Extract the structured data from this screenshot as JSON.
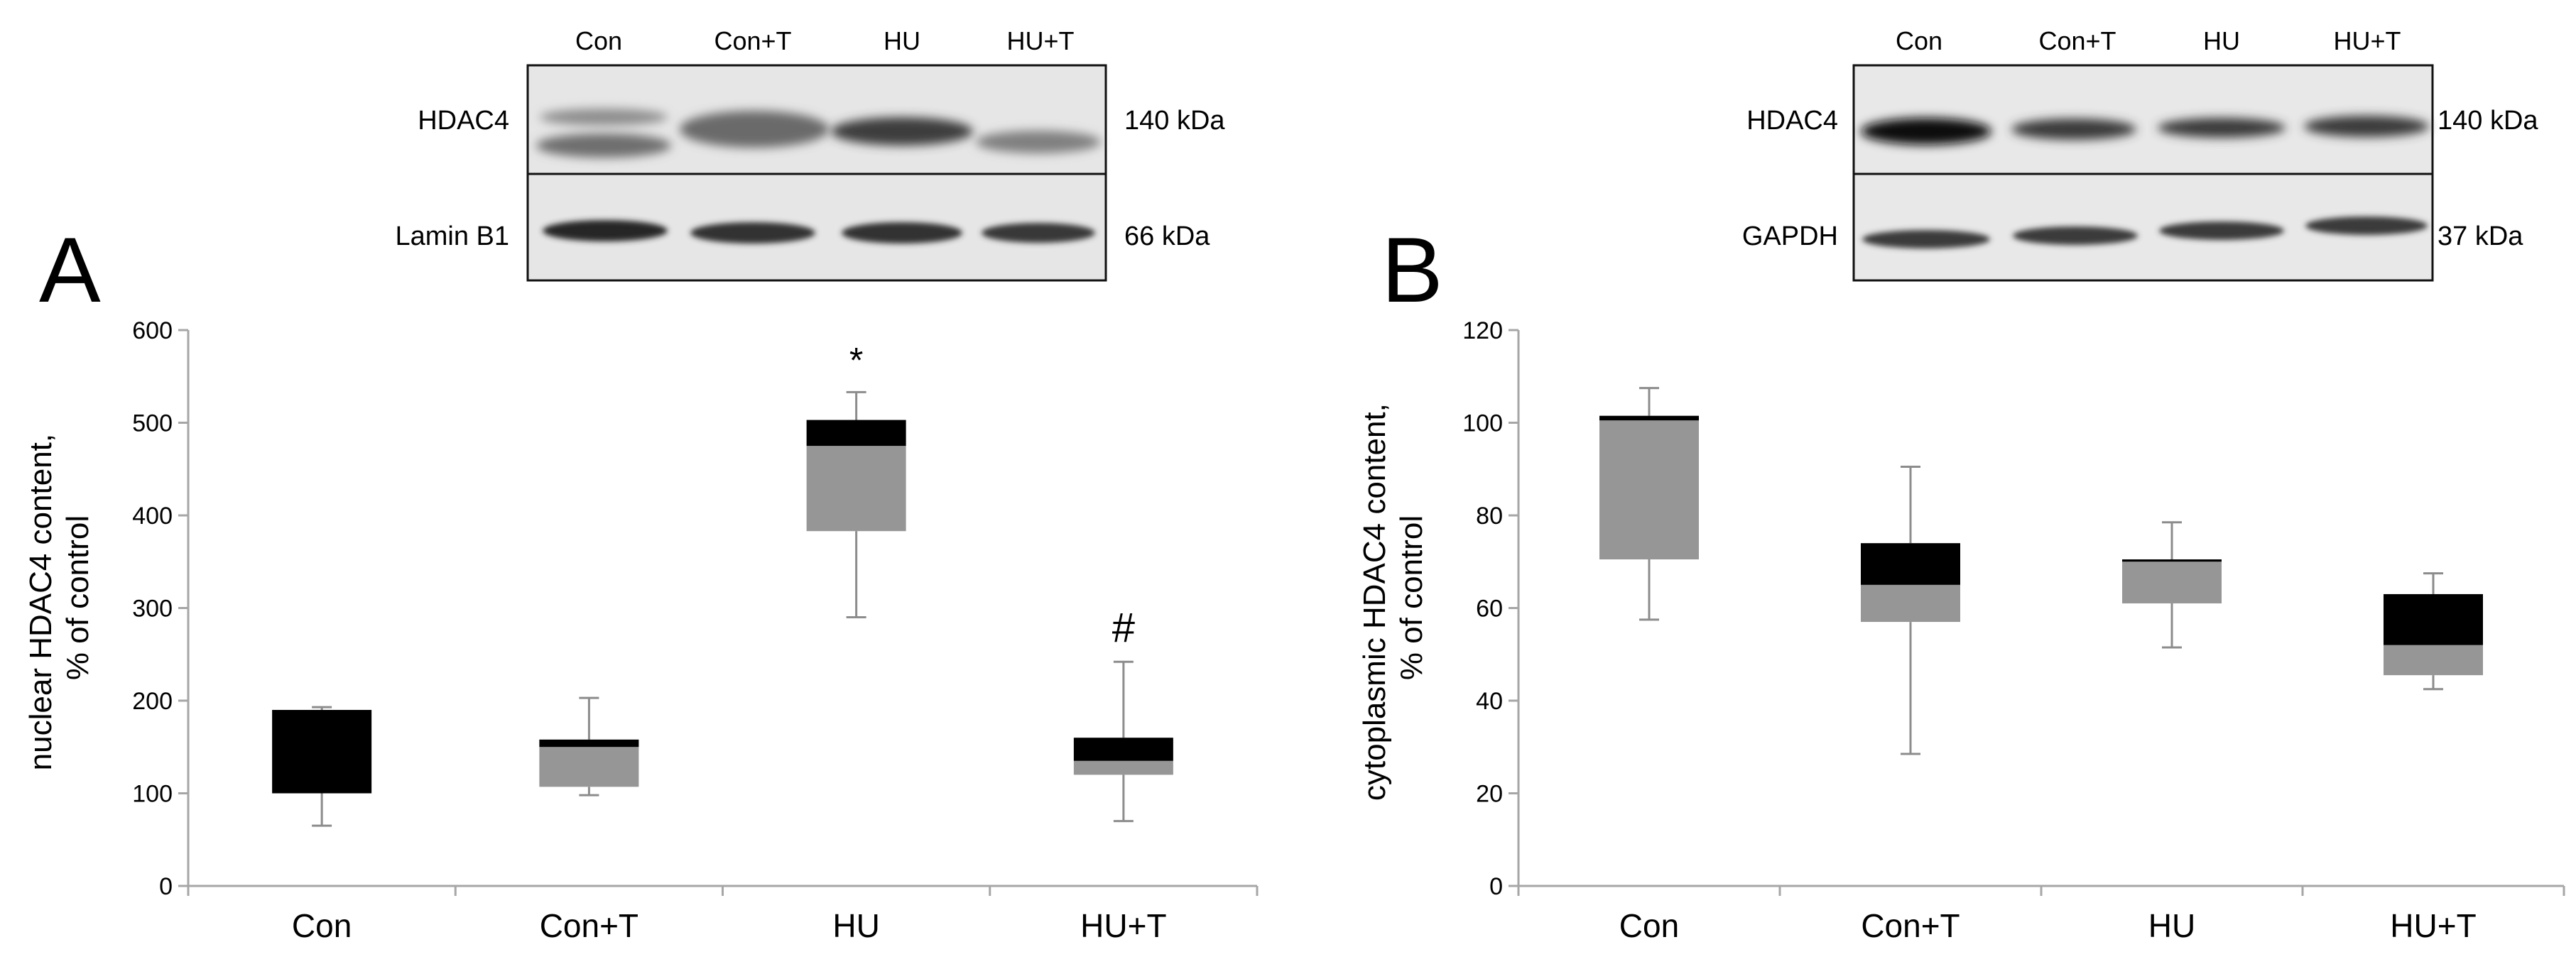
{
  "panels": [
    {
      "letter": "A",
      "blot": {
        "lanes": [
          "Con",
          "Con+T",
          "HU",
          "HU+T"
        ],
        "rows": [
          {
            "protein": "HDAC4",
            "size": "140 kDa"
          },
          {
            "protein": "Lamin B1",
            "size": "66 kDa"
          }
        ]
      }
    },
    {
      "letter": "B",
      "blot": {
        "lanes": [
          "Con",
          "Con+T",
          "HU",
          "HU+T"
        ],
        "rows": [
          {
            "protein": "HDAC4",
            "size": "140 kDa"
          },
          {
            "protein": "GAPDH",
            "size": "37 kDa"
          }
        ]
      }
    }
  ],
  "colors": {
    "lower_box": "#969696",
    "upper_box": "#000000",
    "whisker": "#8c8c8c",
    "axis": "#a6a6a6"
  },
  "chart_data": [
    {
      "type": "box",
      "ylabel": "nuclear HDAC4 content, % of control",
      "ylim": [
        0,
        600
      ],
      "yticks": [
        "0",
        "100",
        "200",
        "300",
        "400",
        "500",
        "600"
      ],
      "categories": [
        "Con",
        "Con+T",
        "HU",
        "HU+T"
      ],
      "boxes": [
        {
          "min": 65,
          "q1": 100,
          "median": 100,
          "q3": 190,
          "max": 193,
          "annotation": ""
        },
        {
          "min": 98,
          "q1": 107,
          "median": 150,
          "q3": 158,
          "max": 203,
          "annotation": ""
        },
        {
          "min": 290,
          "q1": 383,
          "median": 475,
          "q3": 503,
          "max": 533,
          "annotation": "*"
        },
        {
          "min": 70,
          "q1": 120,
          "median": 135,
          "q3": 160,
          "max": 242,
          "annotation": "#"
        }
      ]
    },
    {
      "type": "box",
      "ylabel": "cytoplasmic HDAC4 content, % of control",
      "ylim": [
        0,
        120
      ],
      "yticks": [
        "0",
        "20",
        "40",
        "60",
        "80",
        "100",
        "120"
      ],
      "categories": [
        "Con",
        "Con+T",
        "HU",
        "HU+T"
      ],
      "boxes": [
        {
          "min": 57.5,
          "q1": 70.5,
          "median": 100.5,
          "q3": 101.5,
          "max": 107.5,
          "annotation": ""
        },
        {
          "min": 28.5,
          "q1": 57,
          "median": 65,
          "q3": 74,
          "max": 90.5,
          "annotation": ""
        },
        {
          "min": 51.5,
          "q1": 61,
          "median": 70,
          "q3": 70.5,
          "max": 78.5,
          "annotation": ""
        },
        {
          "min": 42.5,
          "q1": 45.5,
          "median": 52,
          "q3": 63,
          "max": 67.5,
          "annotation": ""
        }
      ]
    }
  ]
}
